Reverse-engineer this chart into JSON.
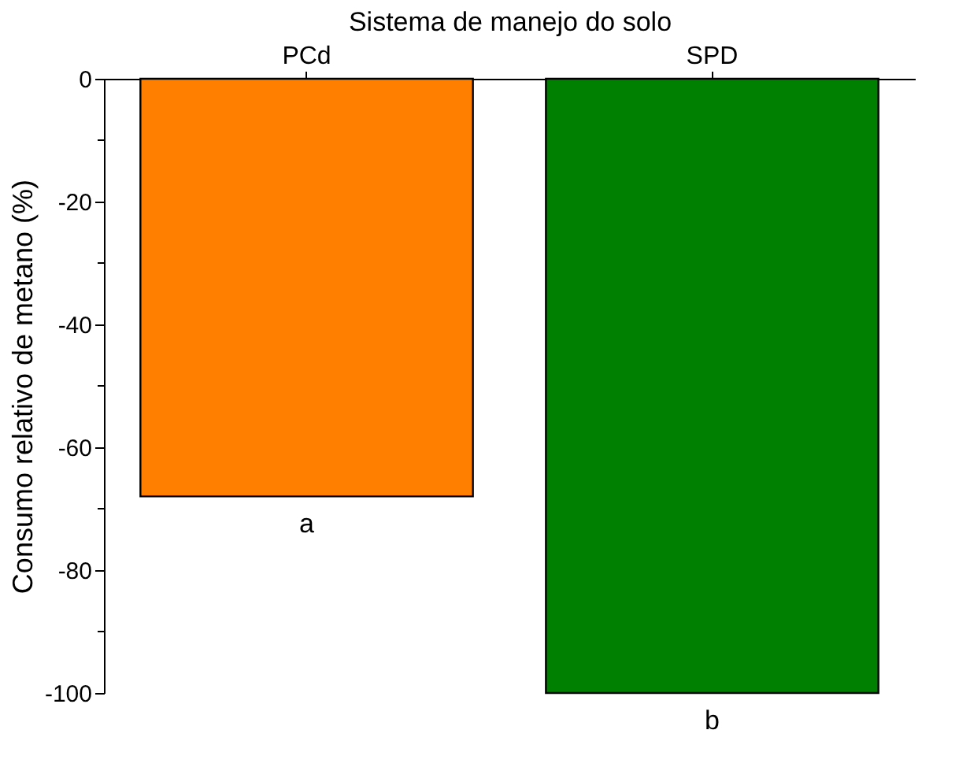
{
  "chart_data": {
    "type": "bar",
    "xlabel": "Sistema de manejo do solo",
    "ylabel": "Consumo relativo de metano (%)",
    "categories": [
      "PCd",
      "SPD"
    ],
    "values": [
      -68,
      -100
    ],
    "colors": [
      "#ff8000",
      "#008000"
    ],
    "ylim": [
      -100,
      0
    ],
    "yticks": [
      0,
      {
        "value": -10,
        "label": null
      },
      -20,
      {
        "value": -30,
        "label": null
      },
      -40,
      {
        "value": -50,
        "label": null
      },
      -60,
      {
        "value": -70,
        "label": null
      },
      -80,
      {
        "value": -90,
        "label": null
      },
      -100
    ],
    "grid": false,
    "annotations": [
      {
        "text": "a",
        "x": "PCd",
        "y": -68
      },
      {
        "text": "b",
        "x": "SPD",
        "y": -100
      }
    ]
  }
}
